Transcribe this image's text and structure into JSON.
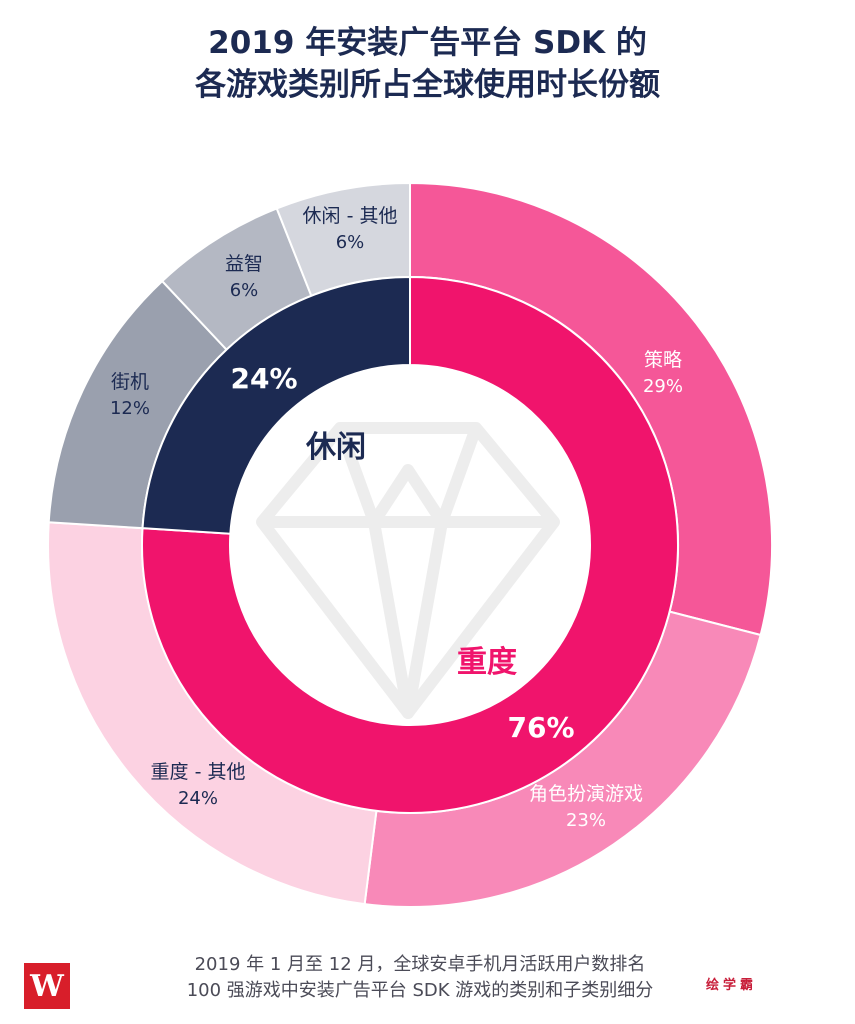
{
  "title": {
    "line1": "2019 年安装广告平台 SDK 的",
    "line2": "各游戏类别所占全球使用时长份额"
  },
  "chart_data": {
    "type": "pie",
    "title": "2019 年安装广告平台 SDK 的各游戏类别所占全球使用时长份额",
    "inner": [
      {
        "name": "重度",
        "value": 76,
        "label": "76%",
        "color": "#f0146c"
      },
      {
        "name": "休闲",
        "value": 24,
        "label": "24%",
        "color": "#1c2a52"
      }
    ],
    "outer": [
      {
        "name": "策略",
        "value": 29,
        "label": "29%",
        "color": "#f55798"
      },
      {
        "name": "角色扮演游戏",
        "value": 23,
        "label": "23%",
        "color": "#f889b8"
      },
      {
        "name": "重度 - 其他",
        "value": 24,
        "label": "24%",
        "color": "#fcd2e2"
      },
      {
        "name": "街机",
        "value": 12,
        "label": "12%",
        "color": "#9aa0ae"
      },
      {
        "name": "益智",
        "value": 6,
        "label": "6%",
        "color": "#b4b8c3"
      },
      {
        "name": "休闲 - 其他",
        "value": 6,
        "label": "6%",
        "color": "#d5d7de"
      }
    ]
  },
  "footer": {
    "line1": "2019 年 1 月至 12 月，全球安卓手机月活跃用户数排名",
    "line2": "100 强游戏中安装广告平台 SDK 游戏的类别和子类别细分"
  },
  "logo": {
    "text": "W"
  },
  "watermark": "绘学霸"
}
